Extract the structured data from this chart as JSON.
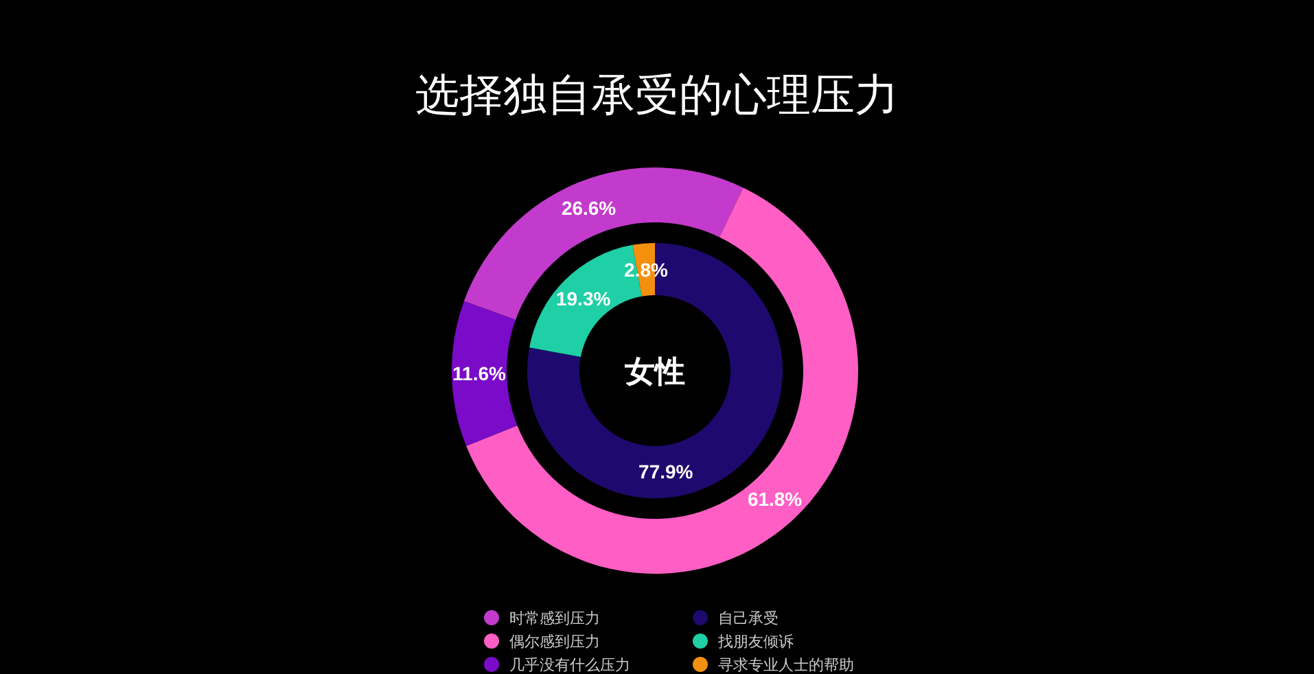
{
  "chart_data": [
    {
      "type": "donut",
      "title": "选择独自承受的心理压力",
      "categories": [
        "时常感到压力",
        "偶尔感到压力",
        "几乎没有什么压力"
      ],
      "values": [
        26.6,
        61.8,
        11.6
      ],
      "colors": [
        "#c23bcc",
        "#ff5ec4",
        "#7a0bc8"
      ],
      "value_labels": [
        "26.6%",
        "61.8%",
        "11.6%"
      ],
      "legend": "bottom"
    },
    {
      "type": "donut",
      "categories": [
        "自己承受",
        "找朋友倾诉",
        "寻求专业人士的帮助"
      ],
      "values": [
        77.9,
        19.3,
        2.8
      ],
      "colors": [
        "#1e0a6e",
        "#1fcfa5",
        "#f5900e"
      ],
      "value_labels": [
        "77.9%",
        "19.3%",
        "2.8%"
      ],
      "annotations": [
        "女性"
      ],
      "legend": "bottom"
    }
  ]
}
